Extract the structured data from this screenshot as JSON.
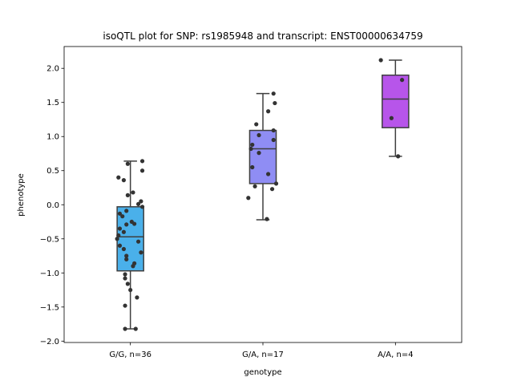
{
  "chart_data": {
    "type": "box",
    "title": "isoQTL plot for SNP: rs1985948 and transcript: ENST00000634759",
    "xlabel": "genotype",
    "ylabel": "phenotype",
    "ylim": [
      -2.02,
      2.32
    ],
    "yticks": [
      -2.0,
      -1.5,
      -1.0,
      -0.5,
      0.0,
      0.5,
      1.0,
      1.5,
      2.0
    ],
    "ytick_labels": [
      "−2.0",
      "−1.5",
      "−1.0",
      "−0.5",
      "0.0",
      "0.5",
      "1.0",
      "1.5",
      "2.0"
    ],
    "grid": false,
    "groups": [
      {
        "label": "G/G, n=36",
        "color": "#4ab0ea",
        "box": {
          "whisker_low": -1.82,
          "q1": -0.97,
          "median": -0.47,
          "q3": -0.03,
          "whisker_high": 0.64
        },
        "points": [
          {
            "dx": -0.09,
            "y": 0.4
          },
          {
            "dx": -0.05,
            "y": 0.36
          },
          {
            "dx": -0.02,
            "y": 0.6
          },
          {
            "dx": 0.09,
            "y": 0.64
          },
          {
            "dx": 0.09,
            "y": 0.5
          },
          {
            "dx": -0.02,
            "y": 0.14
          },
          {
            "dx": 0.02,
            "y": 0.18
          },
          {
            "dx": 0.06,
            "y": 0.01
          },
          {
            "dx": 0.08,
            "y": 0.05
          },
          {
            "dx": 0.09,
            "y": -0.03
          },
          {
            "dx": -0.03,
            "y": -0.09
          },
          {
            "dx": -0.08,
            "y": -0.13
          },
          {
            "dx": -0.06,
            "y": -0.17
          },
          {
            "dx": 0.01,
            "y": -0.25
          },
          {
            "dx": 0.03,
            "y": -0.28
          },
          {
            "dx": -0.03,
            "y": -0.29
          },
          {
            "dx": -0.08,
            "y": -0.35
          },
          {
            "dx": -0.05,
            "y": -0.4
          },
          {
            "dx": -0.09,
            "y": -0.45
          },
          {
            "dx": -0.1,
            "y": -0.5
          },
          {
            "dx": 0.06,
            "y": -0.54
          },
          {
            "dx": -0.08,
            "y": -0.6
          },
          {
            "dx": -0.05,
            "y": -0.65
          },
          {
            "dx": 0.08,
            "y": -0.7
          },
          {
            "dx": -0.03,
            "y": -0.75
          },
          {
            "dx": -0.03,
            "y": -0.8
          },
          {
            "dx": 0.03,
            "y": -0.86
          },
          {
            "dx": 0.02,
            "y": -0.9
          },
          {
            "dx": -0.04,
            "y": -1.02
          },
          {
            "dx": -0.04,
            "y": -1.08
          },
          {
            "dx": -0.02,
            "y": -1.16
          },
          {
            "dx": 0.0,
            "y": -1.25
          },
          {
            "dx": 0.05,
            "y": -1.36
          },
          {
            "dx": -0.04,
            "y": -1.48
          },
          {
            "dx": -0.04,
            "y": -1.82
          },
          {
            "dx": 0.04,
            "y": -1.82
          }
        ]
      },
      {
        "label": "G/A, n=17",
        "color": "#8f8df4",
        "box": {
          "whisker_low": -0.22,
          "q1": 0.31,
          "median": 0.82,
          "q3": 1.09,
          "whisker_high": 1.63
        },
        "points": [
          {
            "dx": 0.08,
            "y": 1.63
          },
          {
            "dx": 0.09,
            "y": 1.49
          },
          {
            "dx": 0.04,
            "y": 1.37
          },
          {
            "dx": -0.05,
            "y": 1.18
          },
          {
            "dx": 0.08,
            "y": 1.09
          },
          {
            "dx": -0.03,
            "y": 1.02
          },
          {
            "dx": 0.08,
            "y": 0.95
          },
          {
            "dx": -0.08,
            "y": 0.88
          },
          {
            "dx": -0.09,
            "y": 0.82
          },
          {
            "dx": -0.03,
            "y": 0.76
          },
          {
            "dx": -0.08,
            "y": 0.55
          },
          {
            "dx": 0.04,
            "y": 0.45
          },
          {
            "dx": 0.1,
            "y": 0.31
          },
          {
            "dx": -0.06,
            "y": 0.27
          },
          {
            "dx": 0.07,
            "y": 0.23
          },
          {
            "dx": -0.11,
            "y": 0.1
          },
          {
            "dx": 0.03,
            "y": -0.21
          }
        ]
      },
      {
        "label": "A/A, n=4",
        "color": "#b755ea",
        "box": {
          "whisker_low": 0.71,
          "q1": 1.13,
          "median": 1.55,
          "q3": 1.9,
          "whisker_high": 2.12
        },
        "points": [
          {
            "dx": -0.11,
            "y": 2.12
          },
          {
            "dx": 0.05,
            "y": 1.83
          },
          {
            "dx": -0.03,
            "y": 1.27
          },
          {
            "dx": 0.02,
            "y": 0.71
          }
        ]
      }
    ]
  }
}
